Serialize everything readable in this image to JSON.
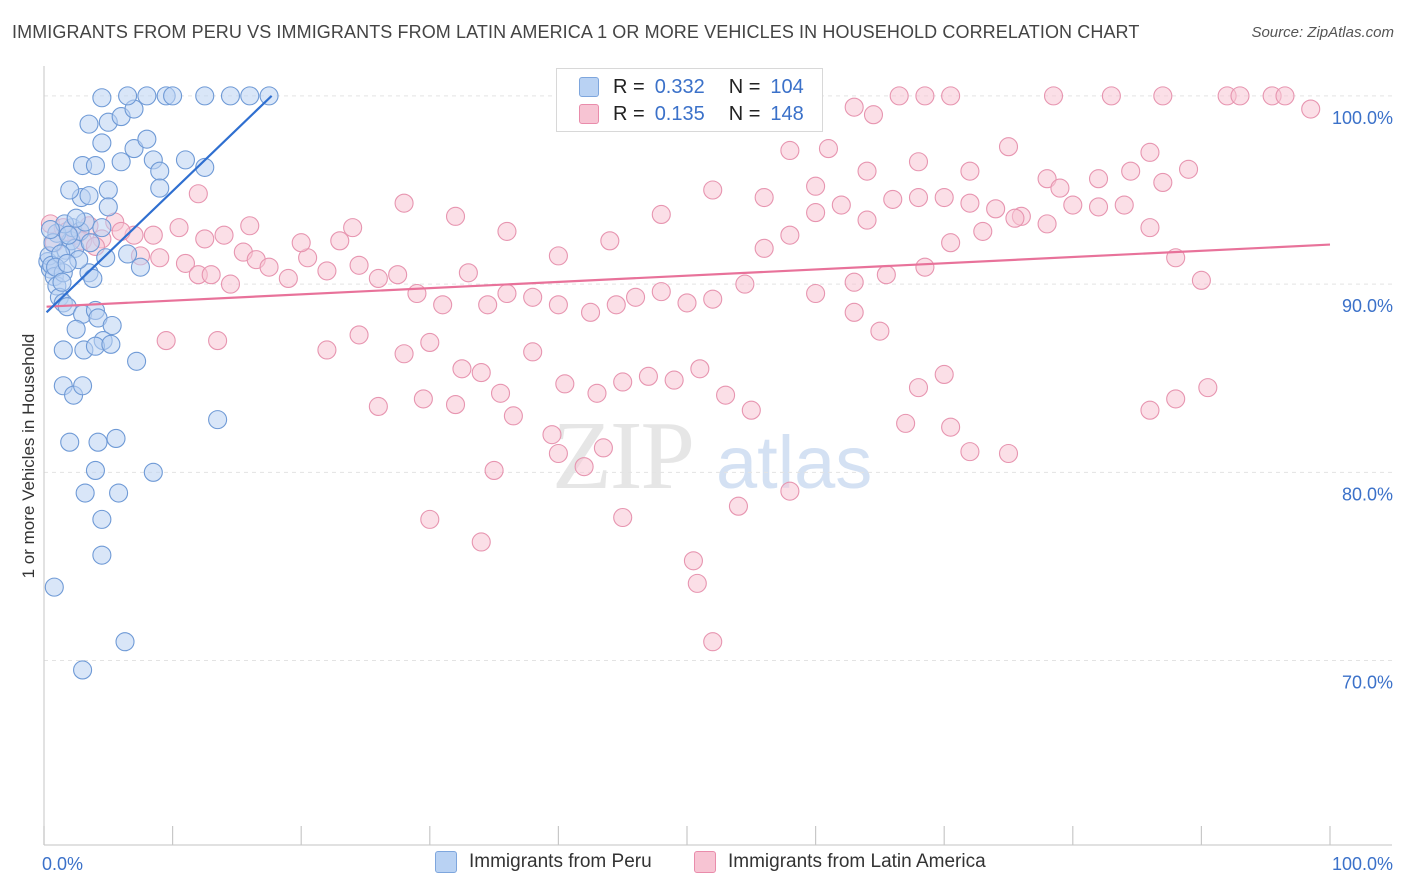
{
  "title": "IMMIGRANTS FROM PERU VS IMMIGRANTS FROM LATIN AMERICA 1 OR MORE VEHICLES IN HOUSEHOLD CORRELATION CHART",
  "source": "Source: ZipAtlas.com",
  "watermark": {
    "zip": "ZIP",
    "atlas": "atlas"
  },
  "legend": {
    "r_label": "R =",
    "n_label": "N =",
    "series": [
      {
        "name": "Immigrants from Peru",
        "r": "0.332",
        "n": "104"
      },
      {
        "name": "Immigrants from Latin America",
        "r": "0.135",
        "n": "148"
      }
    ]
  },
  "colors": {
    "blue_fill": "#b9d2f3",
    "blue_stroke": "#6f9ad6",
    "blue_line": "#2f6fd0",
    "pink_fill": "#f7c4d3",
    "pink_stroke": "#e795b0",
    "pink_line": "#e8729a",
    "axis_label": "#3b71c9",
    "grid": "#e3e3e3"
  },
  "chart_data": {
    "type": "scatter",
    "title": "IMMIGRANTS FROM PERU VS IMMIGRANTS FROM LATIN AMERICA 1 OR MORE VEHICLES IN HOUSEHOLD CORRELATION CHART",
    "xlabel": "",
    "ylabel": "1 or more Vehicles in Household",
    "xlim": [
      0,
      100
    ],
    "ylim": [
      60.2,
      101.8
    ],
    "x_tick_labels": [
      {
        "value": 0,
        "label": "0.0%"
      },
      {
        "value": 100,
        "label": "100.0%"
      }
    ],
    "y_tick_labels": [
      {
        "value": 100,
        "label": "100.0%"
      },
      {
        "value": 90,
        "label": "90.0%"
      },
      {
        "value": 80,
        "label": "80.0%"
      },
      {
        "value": 70,
        "label": "70.0%"
      }
    ],
    "series": [
      {
        "name": "Immigrants from Peru",
        "color": "blue",
        "trend": {
          "x": [
            0.2,
            17.7
          ],
          "y": [
            88.5,
            100.0
          ]
        },
        "points": [
          [
            0.3,
            91.2
          ],
          [
            0.5,
            90.8
          ],
          [
            0.4,
            91.5
          ],
          [
            0.6,
            91.0
          ],
          [
            0.8,
            90.4
          ],
          [
            1.0,
            89.9
          ],
          [
            1.2,
            89.3
          ],
          [
            1.5,
            90.6
          ],
          [
            1.7,
            91.8
          ],
          [
            2.1,
            92.3
          ],
          [
            2.4,
            91.9
          ],
          [
            2.2,
            93.0
          ],
          [
            2.8,
            92.8
          ],
          [
            3.2,
            93.3
          ],
          [
            3.6,
            92.2
          ],
          [
            1.0,
            92.7
          ],
          [
            1.6,
            93.2
          ],
          [
            2.9,
            94.6
          ],
          [
            2.0,
            95.0
          ],
          [
            3.5,
            94.7
          ],
          [
            5.0,
            95.0
          ],
          [
            3.0,
            96.3
          ],
          [
            4.0,
            96.3
          ],
          [
            4.5,
            97.5
          ],
          [
            6.0,
            96.5
          ],
          [
            7.0,
            97.2
          ],
          [
            8.0,
            97.7
          ],
          [
            3.5,
            98.5
          ],
          [
            5.0,
            98.6
          ],
          [
            6.0,
            98.9
          ],
          [
            7.0,
            99.3
          ],
          [
            4.5,
            99.9
          ],
          [
            6.5,
            100.0
          ],
          [
            8.0,
            100.0
          ],
          [
            9.5,
            100.0
          ],
          [
            10.0,
            100.0
          ],
          [
            12.5,
            100.0
          ],
          [
            14.5,
            100.0
          ],
          [
            16.0,
            100.0
          ],
          [
            17.5,
            100.0
          ],
          [
            8.5,
            96.6
          ],
          [
            9.0,
            96.0
          ],
          [
            11.0,
            96.6
          ],
          [
            12.5,
            96.2
          ],
          [
            9.0,
            95.1
          ],
          [
            5.0,
            94.1
          ],
          [
            4.5,
            93.0
          ],
          [
            4.8,
            91.4
          ],
          [
            6.5,
            91.6
          ],
          [
            7.5,
            90.9
          ],
          [
            3.5,
            90.6
          ],
          [
            3.8,
            90.3
          ],
          [
            1.5,
            89.0
          ],
          [
            1.8,
            88.8
          ],
          [
            3.0,
            88.4
          ],
          [
            4.0,
            88.6
          ],
          [
            4.2,
            88.2
          ],
          [
            2.5,
            87.6
          ],
          [
            5.3,
            87.8
          ],
          [
            4.6,
            87.0
          ],
          [
            1.5,
            86.5
          ],
          [
            3.1,
            86.5
          ],
          [
            4.0,
            86.7
          ],
          [
            5.2,
            86.8
          ],
          [
            7.2,
            85.9
          ],
          [
            1.5,
            84.6
          ],
          [
            2.3,
            84.1
          ],
          [
            3.0,
            84.6
          ],
          [
            13.5,
            82.8
          ],
          [
            2.0,
            81.6
          ],
          [
            4.2,
            81.6
          ],
          [
            5.6,
            81.8
          ],
          [
            4.0,
            80.1
          ],
          [
            8.5,
            80.0
          ],
          [
            3.2,
            78.9
          ],
          [
            5.8,
            78.9
          ],
          [
            4.5,
            77.5
          ],
          [
            4.5,
            75.6
          ],
          [
            0.8,
            73.9
          ],
          [
            6.3,
            71.0
          ],
          [
            3.0,
            69.5
          ],
          [
            0.7,
            92.2
          ],
          [
            1.3,
            91.6
          ],
          [
            1.9,
            92.6
          ],
          [
            2.5,
            93.5
          ],
          [
            0.9,
            90.9
          ],
          [
            1.4,
            90.1
          ],
          [
            2.7,
            91.3
          ],
          [
            0.5,
            92.9
          ],
          [
            1.8,
            91.1
          ]
        ]
      },
      {
        "name": "Immigrants from Latin America",
        "color": "pink",
        "trend": {
          "x": [
            0.2,
            100.0
          ],
          "y": [
            88.8,
            92.1
          ]
        },
        "points": [
          [
            0.5,
            93.2
          ],
          [
            1.5,
            93.0
          ],
          [
            2.5,
            92.6
          ],
          [
            3.5,
            93.1
          ],
          [
            4.5,
            92.4
          ],
          [
            5.5,
            93.3
          ],
          [
            7.0,
            92.6
          ],
          [
            8.5,
            92.6
          ],
          [
            10.5,
            93.0
          ],
          [
            12.5,
            92.4
          ],
          [
            14.0,
            92.6
          ],
          [
            0.8,
            92.2
          ],
          [
            1.8,
            92.8
          ],
          [
            3.0,
            92.3
          ],
          [
            4.0,
            92.0
          ],
          [
            6.0,
            92.8
          ],
          [
            7.5,
            91.5
          ],
          [
            9.0,
            91.4
          ],
          [
            11.0,
            91.1
          ],
          [
            12.0,
            90.5
          ],
          [
            13.0,
            90.5
          ],
          [
            14.5,
            90.0
          ],
          [
            15.5,
            91.7
          ],
          [
            16.5,
            91.3
          ],
          [
            17.5,
            90.9
          ],
          [
            19.0,
            90.3
          ],
          [
            20.5,
            91.4
          ],
          [
            22.0,
            90.7
          ],
          [
            23.0,
            92.3
          ],
          [
            24.5,
            91.0
          ],
          [
            26.0,
            90.3
          ],
          [
            27.5,
            90.5
          ],
          [
            29.0,
            89.5
          ],
          [
            31.0,
            88.9
          ],
          [
            33.0,
            90.6
          ],
          [
            34.5,
            88.9
          ],
          [
            36.0,
            89.5
          ],
          [
            38.0,
            89.3
          ],
          [
            40.0,
            88.9
          ],
          [
            42.5,
            88.5
          ],
          [
            44.5,
            88.9
          ],
          [
            46.0,
            89.3
          ],
          [
            48.0,
            89.6
          ],
          [
            50.0,
            89.0
          ],
          [
            52.0,
            89.2
          ],
          [
            54.5,
            90.0
          ],
          [
            56.0,
            91.9
          ],
          [
            58.0,
            92.6
          ],
          [
            60.0,
            93.8
          ],
          [
            62.0,
            94.2
          ],
          [
            64.0,
            93.4
          ],
          [
            66.0,
            94.5
          ],
          [
            68.0,
            94.6
          ],
          [
            70.0,
            94.6
          ],
          [
            72.0,
            94.3
          ],
          [
            74.0,
            94.0
          ],
          [
            76.0,
            93.6
          ],
          [
            78.0,
            93.2
          ],
          [
            80.0,
            94.2
          ],
          [
            82.0,
            94.1
          ],
          [
            84.0,
            94.2
          ],
          [
            86.0,
            93.0
          ],
          [
            88.0,
            91.4
          ],
          [
            90.0,
            90.2
          ],
          [
            12.0,
            94.8
          ],
          [
            16.0,
            93.1
          ],
          [
            20.0,
            92.2
          ],
          [
            24.0,
            93.0
          ],
          [
            28.0,
            94.3
          ],
          [
            32.0,
            93.6
          ],
          [
            36.0,
            92.8
          ],
          [
            40.0,
            91.5
          ],
          [
            44.0,
            92.3
          ],
          [
            48.0,
            93.7
          ],
          [
            52.0,
            95.0
          ],
          [
            56.0,
            94.6
          ],
          [
            60.0,
            95.2
          ],
          [
            64.0,
            96.0
          ],
          [
            68.0,
            96.5
          ],
          [
            72.0,
            96.0
          ],
          [
            75.0,
            97.3
          ],
          [
            78.0,
            95.6
          ],
          [
            82.0,
            95.6
          ],
          [
            86.0,
            97.0
          ],
          [
            9.5,
            87.0
          ],
          [
            13.5,
            87.0
          ],
          [
            22.0,
            86.5
          ],
          [
            24.5,
            87.3
          ],
          [
            28.0,
            86.3
          ],
          [
            30.0,
            86.9
          ],
          [
            32.5,
            85.5
          ],
          [
            34.0,
            85.3
          ],
          [
            35.5,
            84.2
          ],
          [
            38.0,
            86.4
          ],
          [
            40.5,
            84.7
          ],
          [
            43.0,
            84.2
          ],
          [
            45.0,
            84.8
          ],
          [
            47.0,
            85.1
          ],
          [
            49.0,
            84.9
          ],
          [
            51.0,
            85.5
          ],
          [
            53.0,
            84.1
          ],
          [
            55.0,
            83.3
          ],
          [
            26.0,
            83.5
          ],
          [
            29.5,
            83.9
          ],
          [
            32.0,
            83.6
          ],
          [
            36.5,
            83.0
          ],
          [
            39.5,
            82.0
          ],
          [
            42.0,
            80.3
          ],
          [
            43.5,
            81.3
          ],
          [
            40.0,
            81.0
          ],
          [
            35.0,
            80.1
          ],
          [
            30.0,
            77.5
          ],
          [
            34.0,
            76.3
          ],
          [
            45.0,
            77.6
          ],
          [
            50.5,
            75.3
          ],
          [
            50.8,
            74.1
          ],
          [
            52.0,
            71.0
          ],
          [
            54.0,
            78.2
          ],
          [
            58.0,
            79.0
          ],
          [
            90.5,
            84.5
          ],
          [
            88.0,
            83.9
          ],
          [
            86.0,
            83.3
          ],
          [
            67.0,
            82.6
          ],
          [
            70.5,
            82.4
          ],
          [
            72.0,
            81.1
          ],
          [
            75.0,
            81.0
          ],
          [
            63.0,
            88.5
          ],
          [
            65.0,
            87.5
          ],
          [
            68.0,
            84.5
          ],
          [
            70.0,
            85.2
          ],
          [
            60.0,
            89.5
          ],
          [
            63.0,
            90.1
          ],
          [
            65.5,
            90.5
          ],
          [
            68.5,
            90.9
          ],
          [
            70.5,
            92.2
          ],
          [
            73.0,
            92.8
          ],
          [
            75.5,
            93.5
          ],
          [
            79.0,
            95.1
          ],
          [
            84.5,
            96.0
          ],
          [
            87.0,
            95.4
          ],
          [
            89.0,
            96.1
          ],
          [
            66.5,
            100.0
          ],
          [
            68.5,
            100.0
          ],
          [
            70.5,
            100.0
          ],
          [
            78.5,
            100.0
          ],
          [
            83.0,
            100.0
          ],
          [
            87.0,
            100.0
          ],
          [
            92.0,
            100.0
          ],
          [
            95.5,
            100.0
          ],
          [
            98.5,
            99.3
          ],
          [
            63.0,
            99.4
          ],
          [
            64.5,
            99.0
          ],
          [
            56.5,
            99.0
          ],
          [
            55.5,
            99.6
          ],
          [
            58.0,
            97.1
          ],
          [
            61.0,
            97.2
          ],
          [
            93.0,
            100.0
          ],
          [
            96.5,
            100.0
          ]
        ]
      }
    ]
  }
}
